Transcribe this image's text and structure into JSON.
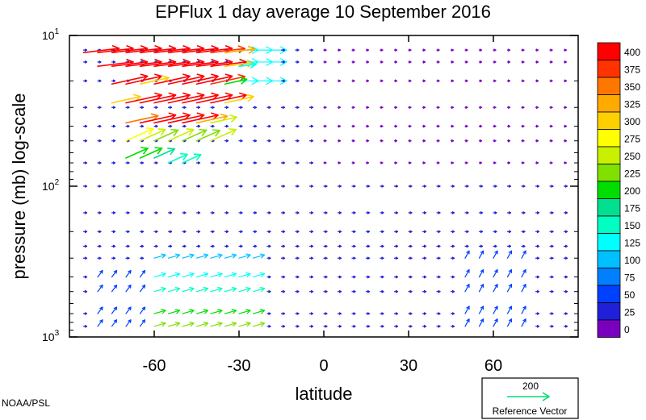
{
  "chart_data": {
    "type": "vector_field",
    "title": "EPFlux  1 day average  10 September 2016",
    "xlabel": "latitude",
    "ylabel": "pressure (mb)  log-scale",
    "xlim": [
      -90,
      90
    ],
    "ylim": [
      1000,
      10
    ],
    "yscale": "log",
    "x_ticks": [
      "-60",
      "-30",
      "0",
      "30",
      "60"
    ],
    "x_tick_values": [
      -60,
      -30,
      0,
      30,
      60
    ],
    "y_tick_labels": [
      {
        "base": "10",
        "exp": "1",
        "value": 10
      },
      {
        "base": "10",
        "exp": "2",
        "value": 100
      },
      {
        "base": "10",
        "exp": "3",
        "value": 1000
      }
    ],
    "colorbar": {
      "labels": [
        "400",
        "375",
        "350",
        "325",
        "300",
        "275",
        "250",
        "225",
        "200",
        "175",
        "150",
        "125",
        "100",
        "75",
        "50",
        "25",
        "0"
      ],
      "colors": [
        "#ff0000",
        "#ff3300",
        "#ff7700",
        "#ffaa00",
        "#ffd000",
        "#ffff00",
        "#c8f000",
        "#80e000",
        "#00dd00",
        "#00e090",
        "#00ffc0",
        "#00ffff",
        "#00c0ff",
        "#0080ff",
        "#0040ff",
        "#2020d8",
        "#7a00c0"
      ]
    },
    "reference_vector": {
      "value": "200",
      "label": "Reference Vector"
    },
    "vectors": {
      "description_units": "magnitude in colorbar units; lat in degrees; pressure in mb",
      "lat_grid": [
        -85,
        -80,
        -75,
        -70,
        -65,
        -60,
        -55,
        -50,
        -45,
        -40,
        -35,
        -30,
        -25,
        -20,
        -15,
        -10,
        -5,
        0,
        5,
        10,
        15,
        20,
        25,
        30,
        35,
        40,
        45,
        50,
        55,
        60,
        65,
        70,
        75,
        80,
        85
      ],
      "pressure_levels": [
        12.5,
        15,
        20,
        30,
        40,
        50,
        70,
        100,
        150,
        200,
        250,
        300,
        400,
        500,
        700,
        850,
        1000
      ],
      "strong": [
        {
          "lat": -85,
          "p": 13,
          "mag": 400
        },
        {
          "lat": -80,
          "p": 13,
          "mag": 400
        },
        {
          "lat": -75,
          "p": 13,
          "mag": 400
        },
        {
          "lat": -70,
          "p": 13,
          "mag": 400
        },
        {
          "lat": -65,
          "p": 13,
          "mag": 400
        },
        {
          "lat": -60,
          "p": 13,
          "mag": 400
        },
        {
          "lat": -55,
          "p": 13,
          "mag": 400
        },
        {
          "lat": -50,
          "p": 13,
          "mag": 400
        },
        {
          "lat": -45,
          "p": 13,
          "mag": 400
        },
        {
          "lat": -40,
          "p": 13,
          "mag": 380
        },
        {
          "lat": -35,
          "p": 13,
          "mag": 320
        },
        {
          "lat": -80,
          "p": 16,
          "mag": 400
        },
        {
          "lat": -75,
          "p": 16,
          "mag": 400
        },
        {
          "lat": -70,
          "p": 16,
          "mag": 400
        },
        {
          "lat": -65,
          "p": 16,
          "mag": 400
        },
        {
          "lat": -60,
          "p": 16,
          "mag": 400
        },
        {
          "lat": -55,
          "p": 16,
          "mag": 400
        },
        {
          "lat": -50,
          "p": 16,
          "mag": 400
        },
        {
          "lat": -45,
          "p": 16,
          "mag": 400
        },
        {
          "lat": -40,
          "p": 16,
          "mag": 400
        },
        {
          "lat": -35,
          "p": 16,
          "mag": 300
        },
        {
          "lat": -30,
          "p": 16,
          "mag": 130
        },
        {
          "lat": -75,
          "p": 21,
          "mag": 400
        },
        {
          "lat": -70,
          "p": 21,
          "mag": 400
        },
        {
          "lat": -65,
          "p": 21,
          "mag": 300
        },
        {
          "lat": -60,
          "p": 21,
          "mag": 400
        },
        {
          "lat": -55,
          "p": 21,
          "mag": 400
        },
        {
          "lat": -50,
          "p": 21,
          "mag": 400
        },
        {
          "lat": -45,
          "p": 21,
          "mag": 400
        },
        {
          "lat": -40,
          "p": 21,
          "mag": 380
        },
        {
          "lat": -35,
          "p": 21,
          "mag": 200
        },
        {
          "lat": -75,
          "p": 28,
          "mag": 300
        },
        {
          "lat": -70,
          "p": 28,
          "mag": 400
        },
        {
          "lat": -65,
          "p": 28,
          "mag": 400
        },
        {
          "lat": -60,
          "p": 28,
          "mag": 400
        },
        {
          "lat": -55,
          "p": 28,
          "mag": 400
        },
        {
          "lat": -50,
          "p": 28,
          "mag": 400
        },
        {
          "lat": -45,
          "p": 28,
          "mag": 400
        },
        {
          "lat": -40,
          "p": 28,
          "mag": 400
        },
        {
          "lat": -35,
          "p": 28,
          "mag": 300
        },
        {
          "lat": -70,
          "p": 38,
          "mag": 350
        },
        {
          "lat": -65,
          "p": 38,
          "mag": 400
        },
        {
          "lat": -60,
          "p": 38,
          "mag": 400
        },
        {
          "lat": -55,
          "p": 38,
          "mag": 400
        },
        {
          "lat": -50,
          "p": 38,
          "mag": 400
        },
        {
          "lat": -45,
          "p": 38,
          "mag": 330
        },
        {
          "lat": -40,
          "p": 38,
          "mag": 260
        },
        {
          "lat": -70,
          "p": 50,
          "mag": 280
        },
        {
          "lat": -65,
          "p": 50,
          "mag": 250
        },
        {
          "lat": -60,
          "p": 50,
          "mag": 230
        },
        {
          "lat": -55,
          "p": 50,
          "mag": 250
        },
        {
          "lat": -50,
          "p": 50,
          "mag": 230
        },
        {
          "lat": -45,
          "p": 50,
          "mag": 220
        },
        {
          "lat": -40,
          "p": 50,
          "mag": 250
        },
        {
          "lat": -70,
          "p": 65,
          "mag": 200
        },
        {
          "lat": -65,
          "p": 65,
          "mag": 200
        },
        {
          "lat": -60,
          "p": 65,
          "mag": 180
        },
        {
          "lat": -55,
          "p": 70,
          "mag": 160
        },
        {
          "lat": -50,
          "p": 70,
          "mag": 150
        }
      ]
    }
  },
  "footer": {
    "credit": "NOAA/PSL"
  },
  "colors": {
    "axes": "#000000",
    "weak_vector": "#2020d8",
    "reference_arrow": "#00dd70"
  }
}
